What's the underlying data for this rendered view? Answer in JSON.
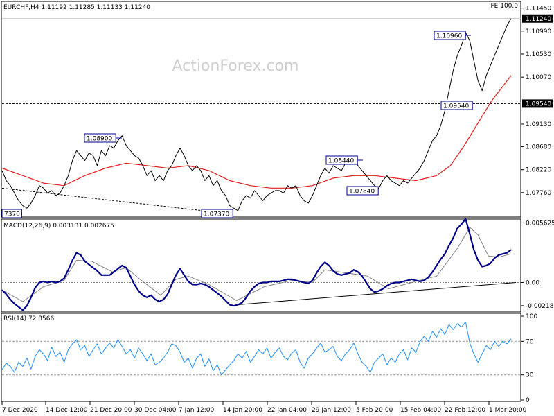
{
  "chart_data": [
    {
      "type": "line",
      "panel": "price",
      "title": "EURCHF,H4  1.11192 1.11285 1.11133 1.11240",
      "top_right_text": "FE 100.0",
      "watermark": "ActionForex.com",
      "ylim": [
        1.073,
        1.115
      ],
      "y_ticks": [
        "1.11450",
        "1.10990",
        "1.10530",
        "1.10070",
        "1.09130",
        "1.08680",
        "1.08220",
        "1.07760"
      ],
      "current_price_tag": "1.11240",
      "horizontal_level": "1.09540",
      "series": [
        {
          "name": "",
          "color": "#000000",
          "x": [
            0,
            6,
            12,
            18,
            24,
            30,
            36,
            42,
            48,
            54,
            60,
            66,
            72,
            78,
            84,
            90,
            96,
            102,
            108,
            114,
            120,
            126,
            132,
            138,
            144,
            150,
            156,
            162,
            168,
            174,
            180,
            186,
            192,
            198,
            204,
            210,
            216,
            222,
            228,
            234,
            240,
            246,
            252,
            258,
            264,
            270,
            276,
            282,
            288,
            294,
            300,
            306,
            312,
            318,
            324,
            330,
            336,
            342,
            348,
            354,
            360,
            366,
            372,
            378,
            384,
            390,
            396,
            402,
            408,
            414,
            420,
            426,
            432,
            438,
            444,
            450,
            456,
            462,
            468,
            474,
            480,
            486,
            492,
            498,
            504,
            510,
            516,
            522,
            528,
            534,
            540,
            546,
            552,
            558,
            564,
            570,
            576,
            582,
            588,
            594,
            600,
            606,
            612,
            618,
            624,
            630,
            636,
            642,
            648,
            654,
            660,
            666,
            672,
            678,
            684,
            690,
            696,
            702,
            708,
            714,
            720,
            726,
            732,
            738
          ],
          "y": [
            1.082,
            1.08,
            1.079,
            1.0775,
            1.076,
            1.075,
            1.0745,
            1.0755,
            1.077,
            1.079,
            1.0785,
            1.0775,
            1.078,
            1.077,
            1.0775,
            1.079,
            1.081,
            1.084,
            1.086,
            1.085,
            1.084,
            1.0855,
            1.085,
            1.083,
            1.086,
            1.085,
            1.087,
            1.0865,
            1.088,
            1.089,
            1.087,
            1.086,
            1.085,
            1.0845,
            1.083,
            1.081,
            1.082,
            1.08,
            1.081,
            1.08,
            1.082,
            1.083,
            1.085,
            1.0865,
            1.085,
            1.083,
            1.082,
            1.083,
            1.082,
            1.08,
            1.081,
            1.079,
            1.08,
            1.078,
            1.077,
            1.075,
            1.0745,
            1.074,
            1.076,
            1.077,
            1.0765,
            1.078,
            1.077,
            1.076,
            1.077,
            1.0775,
            1.078,
            1.078,
            1.0775,
            1.079,
            1.0785,
            1.079,
            1.077,
            1.076,
            1.0755,
            1.077,
            1.079,
            1.081,
            1.0825,
            1.0815,
            1.083,
            1.0825,
            1.082,
            1.0835,
            1.084,
            1.0844,
            1.083,
            1.082,
            1.081,
            1.08,
            1.079,
            1.0784,
            1.08,
            1.081,
            1.08,
            1.0795,
            1.079,
            1.08,
            1.0795,
            1.0805,
            1.0815,
            1.0825,
            1.084,
            1.086,
            1.088,
            1.089,
            1.091,
            1.094,
            1.098,
            1.102,
            1.105,
            1.107,
            1.1096,
            1.108,
            1.104,
            1.1,
            1.098,
            1.101,
            1.103,
            1.105,
            1.107,
            1.109,
            1.111,
            1.1124
          ]
        },
        {
          "name": "",
          "color": "#e02020",
          "x": [
            0,
            30,
            60,
            90,
            120,
            150,
            180,
            210,
            240,
            270,
            300,
            330,
            360,
            390,
            420,
            450,
            480,
            510,
            540,
            570,
            600,
            630,
            650,
            670,
            690,
            710,
            738
          ],
          "y": [
            1.0825,
            1.081,
            1.0795,
            1.079,
            1.081,
            1.0825,
            1.0835,
            1.083,
            1.0825,
            1.083,
            1.082,
            1.08,
            1.079,
            1.0785,
            1.0785,
            1.079,
            1.0805,
            1.081,
            1.081,
            1.0805,
            1.08,
            1.081,
            1.083,
            1.087,
            1.0915,
            1.096,
            1.101
          ]
        }
      ],
      "trendline": {
        "x": [
          0,
          310
        ],
        "y": [
          1.0785,
          1.0737
        ]
      },
      "labels": [
        "1.08900",
        "1.07370",
        "1.08440",
        "1.07840",
        "1.10960",
        "1.09540",
        "7370"
      ]
    },
    {
      "type": "line",
      "panel": "macd",
      "title": "MACD(12,26,9) 0.003131 0.002675",
      "ylim": [
        -0.00265,
        0.00585
      ],
      "y_ticks": [
        "0.005625",
        "0.00",
        "-0.002185"
      ],
      "series": [
        {
          "name": "",
          "color": "#00008b",
          "x": [
            0,
            6,
            12,
            18,
            24,
            30,
            36,
            42,
            48,
            54,
            60,
            66,
            72,
            78,
            84,
            90,
            96,
            102,
            108,
            114,
            120,
            126,
            132,
            138,
            144,
            150,
            156,
            162,
            168,
            174,
            180,
            186,
            192,
            198,
            204,
            210,
            216,
            222,
            228,
            234,
            240,
            246,
            252,
            258,
            264,
            270,
            276,
            282,
            288,
            294,
            300,
            306,
            312,
            318,
            324,
            330,
            336,
            342,
            348,
            354,
            360,
            366,
            372,
            378,
            384,
            390,
            396,
            402,
            408,
            414,
            420,
            426,
            432,
            438,
            444,
            450,
            456,
            462,
            468,
            474,
            480,
            486,
            492,
            498,
            504,
            510,
            516,
            522,
            528,
            534,
            540,
            546,
            552,
            558,
            564,
            570,
            576,
            582,
            588,
            594,
            600,
            606,
            612,
            618,
            624,
            630,
            636,
            642,
            648,
            654,
            660,
            666,
            672,
            678,
            684,
            690,
            696,
            702,
            708,
            714,
            720,
            726,
            732,
            738
          ],
          "y": [
            -0.0007,
            -0.0011,
            -0.0016,
            -0.002,
            -0.0023,
            -0.0026,
            -0.0022,
            -0.0014,
            -0.0005,
            0.0,
            0.0001,
            0.0,
            0.0001,
            0.0,
            0.0001,
            0.0004,
            0.0012,
            0.0021,
            0.0028,
            0.0026,
            0.002,
            0.0017,
            0.0014,
            0.0011,
            0.0007,
            0.0007,
            0.0007,
            0.001,
            0.0013,
            0.0016,
            0.0014,
            0.0006,
            -0.0002,
            -0.0008,
            -0.0012,
            -0.0014,
            -0.0012,
            -0.0016,
            -0.0018,
            -0.0016,
            -0.0011,
            -0.0002,
            0.0007,
            0.0013,
            0.0007,
            0.0001,
            -0.0002,
            -0.0002,
            -0.0001,
            -0.0002,
            -0.0004,
            -0.0007,
            -0.001,
            -0.0013,
            -0.0017,
            -0.0021,
            -0.0022,
            -0.0021,
            -0.0019,
            -0.0014,
            -0.0008,
            -0.0004,
            -0.0001,
            0.0,
            0.0,
            0.0001,
            0.0001,
            0.0001,
            0.0002,
            0.0003,
            0.0003,
            0.0002,
            0.0001,
            0.0,
            -0.0001,
            0.0002,
            0.0009,
            0.0015,
            0.0019,
            0.0016,
            0.0011,
            0.0008,
            0.0007,
            0.0008,
            0.0009,
            0.0012,
            0.001,
            0.0006,
            0.0,
            -0.0006,
            -0.0009,
            -0.0008,
            -0.0006,
            -0.0003,
            -0.0001,
            0.0,
            0.0,
            0.0001,
            0.0002,
            0.0003,
            0.0002,
            0.0001,
            0.0002,
            0.0005,
            0.001,
            0.0016,
            0.0022,
            0.0027,
            0.0035,
            0.0042,
            0.0051,
            0.0055,
            0.006,
            0.0046,
            0.0031,
            0.0021,
            0.0015,
            0.0016,
            0.0018,
            0.0023,
            0.0026,
            0.0027,
            0.0028,
            0.0031
          ]
        },
        {
          "name": "",
          "color": "#808080",
          "x": [
            0,
            30,
            60,
            90,
            108,
            130,
            160,
            180,
            200,
            230,
            252,
            270,
            300,
            340,
            380,
            420,
            450,
            468,
            500,
            530,
            560,
            600,
            630,
            660,
            678,
            690,
            705,
            720,
            738
          ],
          "y": [
            -0.0007,
            -0.0018,
            -0.0004,
            0.0002,
            0.0021,
            0.002,
            0.001,
            0.0014,
            0.0003,
            -0.0012,
            0.0003,
            0.0006,
            -0.0002,
            -0.0017,
            -0.0004,
            0.0002,
            0.0,
            0.0012,
            0.0009,
            0.0006,
            -0.0006,
            0.0001,
            0.0006,
            0.0032,
            0.0052,
            0.0045,
            0.0025,
            0.0024,
            0.0027
          ]
        }
      ],
      "trendline": {
        "x": [
          340,
          745
        ],
        "y": [
          -0.0021,
          0.0
        ]
      }
    },
    {
      "type": "line",
      "panel": "rsi",
      "title": "RSI(14) 72.8566",
      "ylim": [
        0,
        100
      ],
      "y_ticks": [
        "100",
        "70",
        "30",
        "0"
      ],
      "levels": [
        70,
        30
      ],
      "series": [
        {
          "name": "",
          "color": "#1e90ff",
          "x": [
            0,
            6,
            12,
            18,
            24,
            30,
            36,
            42,
            48,
            54,
            60,
            66,
            72,
            78,
            84,
            90,
            96,
            102,
            108,
            114,
            120,
            126,
            132,
            138,
            144,
            150,
            156,
            162,
            168,
            174,
            180,
            186,
            192,
            198,
            204,
            210,
            216,
            222,
            228,
            234,
            240,
            246,
            252,
            258,
            264,
            270,
            276,
            282,
            288,
            294,
            300,
            306,
            312,
            318,
            324,
            330,
            336,
            342,
            348,
            354,
            360,
            366,
            372,
            378,
            384,
            390,
            396,
            402,
            408,
            414,
            420,
            426,
            432,
            438,
            444,
            450,
            456,
            462,
            468,
            474,
            480,
            486,
            492,
            498,
            504,
            510,
            516,
            522,
            528,
            534,
            540,
            546,
            552,
            558,
            564,
            570,
            576,
            582,
            588,
            594,
            600,
            606,
            612,
            618,
            624,
            630,
            636,
            642,
            648,
            654,
            660,
            666,
            672,
            678,
            684,
            690,
            696,
            702,
            708,
            714,
            720,
            726,
            732,
            738
          ],
          "y": [
            36,
            44,
            40,
            33,
            45,
            40,
            50,
            37,
            52,
            60,
            55,
            47,
            63,
            52,
            57,
            45,
            60,
            67,
            72,
            60,
            65,
            52,
            60,
            67,
            55,
            62,
            68,
            62,
            72,
            64,
            55,
            60,
            50,
            62,
            55,
            47,
            55,
            42,
            45,
            50,
            57,
            67,
            65,
            57,
            45,
            50,
            38,
            50,
            55,
            40,
            49,
            35,
            42,
            30,
            36,
            42,
            47,
            55,
            50,
            58,
            45,
            52,
            60,
            55,
            62,
            50,
            57,
            62,
            52,
            48,
            56,
            60,
            45,
            38,
            50,
            55,
            62,
            68,
            57,
            60,
            64,
            52,
            47,
            55,
            60,
            68,
            55,
            45,
            40,
            33,
            45,
            50,
            55,
            42,
            50,
            45,
            55,
            60,
            48,
            62,
            57,
            70,
            76,
            70,
            82,
            75,
            85,
            78,
            90,
            84,
            91,
            87,
            93,
            68,
            55,
            45,
            55,
            65,
            60,
            70,
            64,
            70,
            67,
            73
          ]
        }
      ]
    }
  ],
  "x_axis": {
    "ticks": [
      "7 Dec 2020",
      "14 Dec 12:00",
      "21 Dec 20:00",
      "30 Dec 04:00",
      "7 Jan 12:00",
      "14 Jan 20:00",
      "22 Jan 04:00",
      "29 Jan 12:00",
      "5 Feb 20:00",
      "15 Feb 04:00",
      "22 Feb 12:00",
      "1 Mar 20:00"
    ]
  }
}
